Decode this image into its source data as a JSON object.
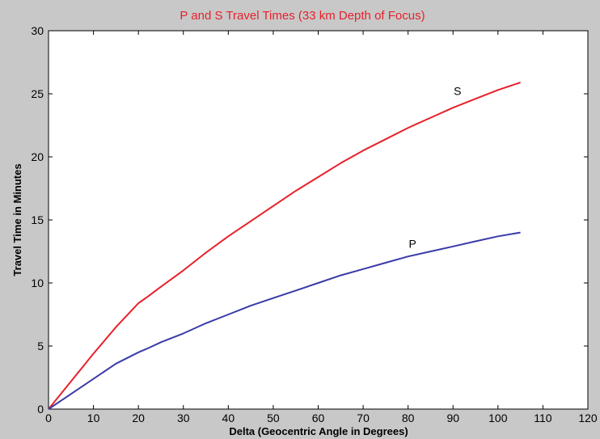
{
  "chart_data": {
    "type": "line",
    "title": "P and S Travel Times (33 km Depth of Focus)",
    "xlabel": "Delta (Geocentric Angle in Degrees)",
    "ylabel": "Travel Time in Minutes",
    "xlim": [
      0,
      120
    ],
    "ylim": [
      0,
      30
    ],
    "xticks": [
      0,
      10,
      20,
      30,
      40,
      50,
      60,
      70,
      80,
      90,
      100,
      110,
      120
    ],
    "yticks": [
      0,
      5,
      10,
      15,
      20,
      25,
      30
    ],
    "grid": false,
    "series": [
      {
        "name": "S",
        "color": "#e8202a",
        "label_at": [
          91,
          24.9
        ],
        "x": [
          0,
          5,
          10,
          15,
          20,
          22,
          25,
          30,
          35,
          40,
          45,
          50,
          55,
          60,
          65,
          70,
          75,
          80,
          85,
          90,
          95,
          100,
          105
        ],
        "y": [
          0,
          2.2,
          4.4,
          6.5,
          8.4,
          8.9,
          9.7,
          11.0,
          12.4,
          13.7,
          14.9,
          16.1,
          17.3,
          18.4,
          19.5,
          20.5,
          21.4,
          22.3,
          23.1,
          23.9,
          24.6,
          25.3,
          25.9
        ]
      },
      {
        "name": "P",
        "color": "#3a3aa8",
        "label_at": [
          81,
          12.8
        ],
        "x": [
          0,
          5,
          10,
          15,
          20,
          22,
          25,
          30,
          35,
          40,
          45,
          50,
          55,
          60,
          65,
          70,
          75,
          80,
          85,
          90,
          95,
          100,
          105
        ],
        "y": [
          0,
          1.2,
          2.4,
          3.6,
          4.5,
          4.8,
          5.3,
          6.0,
          6.8,
          7.5,
          8.2,
          8.8,
          9.4,
          10.0,
          10.6,
          11.1,
          11.6,
          12.1,
          12.5,
          12.9,
          13.3,
          13.7,
          14.0
        ]
      }
    ]
  }
}
